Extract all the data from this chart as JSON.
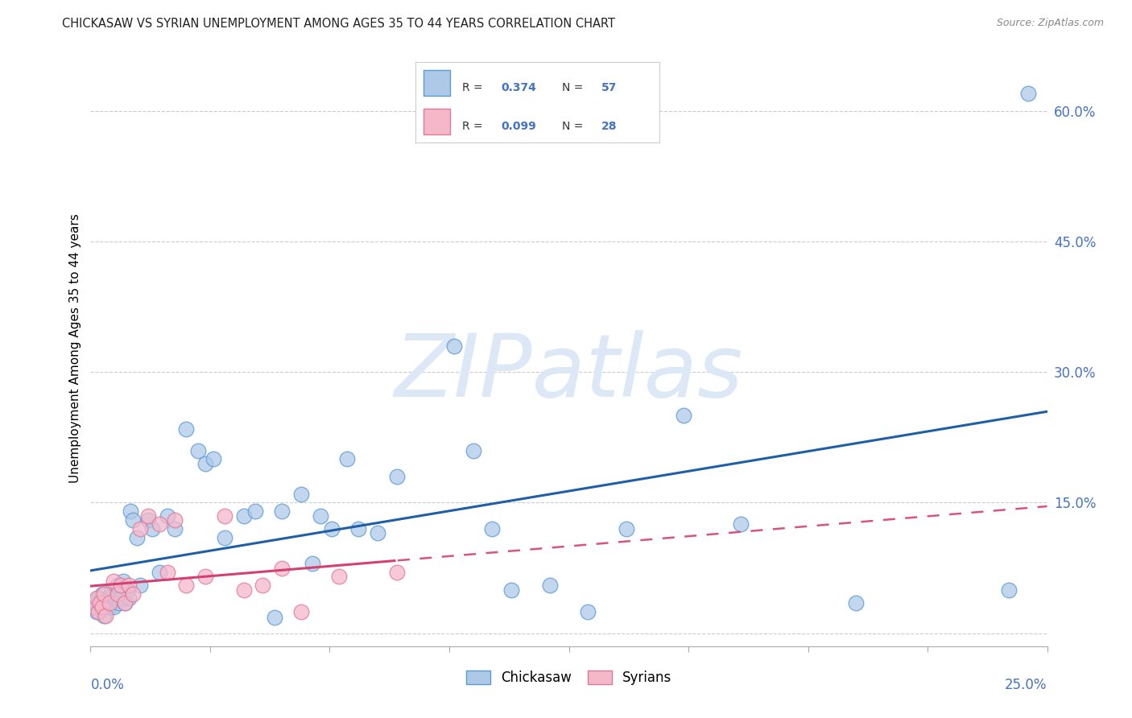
{
  "title": "CHICKASAW VS SYRIAN UNEMPLOYMENT AMONG AGES 35 TO 44 YEARS CORRELATION CHART",
  "source": "Source: ZipAtlas.com",
  "ylabel": "Unemployment Among Ages 35 to 44 years",
  "xlim": [
    0.0,
    25.0
  ],
  "ylim": [
    -1.5,
    67.0
  ],
  "yticks": [
    0.0,
    15.0,
    30.0,
    45.0,
    60.0
  ],
  "ytick_labels": [
    "",
    "15.0%",
    "30.0%",
    "45.0%",
    "60.0%"
  ],
  "legend_chickasaw_R": "0.374",
  "legend_chickasaw_N": "57",
  "legend_syrian_R": "0.099",
  "legend_syrian_N": "28",
  "chickasaw_color": "#aec9e8",
  "syrian_color": "#f5b8cb",
  "chickasaw_edge_color": "#5b9bd5",
  "syrian_edge_color": "#e07898",
  "chickasaw_trend_color": "#1f5fa6",
  "syrian_trend_color": "#d44070",
  "watermark_color": "#dce8f5",
  "title_color": "#222222",
  "source_color": "#888888",
  "ytick_color": "#4472c4",
  "xtick_label_color": "#4472c4",
  "grid_color": "#cccccc",
  "chickasaw_x": [
    0.1,
    0.15,
    0.2,
    0.25,
    0.3,
    0.35,
    0.4,
    0.45,
    0.5,
    0.55,
    0.6,
    0.65,
    0.7,
    0.75,
    0.8,
    0.85,
    0.9,
    0.95,
    1.0,
    1.05,
    1.1,
    1.2,
    1.3,
    1.5,
    1.6,
    1.8,
    2.0,
    2.2,
    2.5,
    2.8,
    3.0,
    3.2,
    3.5,
    4.0,
    4.3,
    4.8,
    5.0,
    5.5,
    5.8,
    6.0,
    6.3,
    6.7,
    7.0,
    7.5,
    8.0,
    9.5,
    10.0,
    10.5,
    11.0,
    12.0,
    13.0,
    14.0,
    15.5,
    17.0,
    20.0,
    24.0,
    24.5
  ],
  "chickasaw_y": [
    3.5,
    2.5,
    4.0,
    3.0,
    4.5,
    2.0,
    3.5,
    4.0,
    3.0,
    5.0,
    3.0,
    4.0,
    5.5,
    3.5,
    4.0,
    6.0,
    3.5,
    5.0,
    4.0,
    14.0,
    13.0,
    11.0,
    5.5,
    13.0,
    12.0,
    7.0,
    13.5,
    12.0,
    23.5,
    21.0,
    19.5,
    20.0,
    11.0,
    13.5,
    14.0,
    1.8,
    14.0,
    16.0,
    8.0,
    13.5,
    12.0,
    20.0,
    12.0,
    11.5,
    18.0,
    33.0,
    21.0,
    12.0,
    5.0,
    5.5,
    2.5,
    12.0,
    25.0,
    12.5,
    3.5,
    5.0,
    62.0
  ],
  "syrian_x": [
    0.1,
    0.15,
    0.2,
    0.25,
    0.3,
    0.35,
    0.4,
    0.5,
    0.6,
    0.7,
    0.8,
    0.9,
    1.0,
    1.1,
    1.3,
    1.5,
    1.8,
    2.0,
    2.2,
    2.5,
    3.0,
    3.5,
    4.0,
    4.5,
    5.0,
    5.5,
    6.5,
    8.0
  ],
  "syrian_y": [
    3.0,
    4.0,
    2.5,
    3.5,
    3.0,
    4.5,
    2.0,
    3.5,
    6.0,
    4.5,
    5.5,
    3.5,
    5.5,
    4.5,
    12.0,
    13.5,
    12.5,
    7.0,
    13.0,
    5.5,
    6.5,
    13.5,
    5.0,
    5.5,
    7.5,
    2.5,
    6.5,
    7.0
  ],
  "xtick_positions": [
    0.0,
    3.125,
    6.25,
    9.375,
    12.5,
    15.625,
    18.75,
    21.875,
    25.0
  ]
}
